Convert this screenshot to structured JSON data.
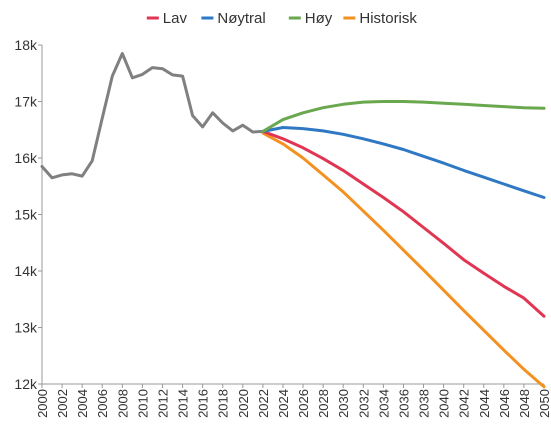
{
  "chart_data": {
    "type": "line",
    "legend_position": "top",
    "grid": false,
    "xlim": [
      2000,
      2050
    ],
    "ylim": [
      12000,
      18000
    ],
    "y_ticks": [
      {
        "value": 12000,
        "label": "12k"
      },
      {
        "value": 13000,
        "label": "13k"
      },
      {
        "value": 14000,
        "label": "14k"
      },
      {
        "value": 15000,
        "label": "15k"
      },
      {
        "value": 16000,
        "label": "16k"
      },
      {
        "value": 17000,
        "label": "17k"
      },
      {
        "value": 18000,
        "label": "18k"
      }
    ],
    "x_ticks": [
      "2000",
      "2002",
      "2004",
      "2006",
      "2008",
      "2010",
      "2012",
      "2014",
      "2016",
      "2018",
      "2020",
      "2022",
      "2024",
      "2026",
      "2028",
      "2030",
      "2032",
      "2034",
      "2036",
      "2038",
      "2040",
      "2042",
      "2044",
      "2046",
      "2048",
      "2050"
    ],
    "history": {
      "color": "#808080",
      "x": [
        2000,
        2001,
        2002,
        2003,
        2004,
        2005,
        2006,
        2007,
        2008,
        2009,
        2010,
        2011,
        2012,
        2013,
        2014,
        2015,
        2016,
        2017,
        2018,
        2019,
        2020,
        2021,
        2022
      ],
      "y": [
        15850,
        15650,
        15700,
        15720,
        15680,
        15950,
        16700,
        17450,
        17850,
        17420,
        17480,
        17600,
        17580,
        17470,
        17450,
        16750,
        16550,
        16800,
        16620,
        16480,
        16580,
        16460,
        16470
      ]
    },
    "series": [
      {
        "name": "Lav",
        "color": "#e03553",
        "x": [
          2022,
          2024,
          2026,
          2028,
          2030,
          2032,
          2034,
          2036,
          2038,
          2040,
          2042,
          2044,
          2046,
          2048,
          2050
        ],
        "y": [
          16470,
          16340,
          16180,
          15990,
          15780,
          15540,
          15300,
          15050,
          14770,
          14490,
          14200,
          13960,
          13730,
          13520,
          13200
        ]
      },
      {
        "name": "Nøytral",
        "color": "#2f78c4",
        "x": [
          2022,
          2024,
          2026,
          2028,
          2030,
          2032,
          2034,
          2036,
          2038,
          2040,
          2042,
          2044,
          2046,
          2048,
          2050
        ],
        "y": [
          16470,
          16540,
          16520,
          16480,
          16420,
          16340,
          16250,
          16150,
          16030,
          15910,
          15780,
          15660,
          15540,
          15420,
          15300
        ]
      },
      {
        "name": "Høy",
        "color": "#6aa84f",
        "x": [
          2022,
          2024,
          2026,
          2028,
          2030,
          2032,
          2034,
          2036,
          2038,
          2040,
          2042,
          2044,
          2046,
          2048,
          2050
        ],
        "y": [
          16470,
          16680,
          16800,
          16890,
          16950,
          16990,
          17000,
          17000,
          16990,
          16970,
          16950,
          16930,
          16910,
          16890,
          16880
        ]
      },
      {
        "name": "Historisk",
        "color": "#f39121",
        "x": [
          2022,
          2024,
          2026,
          2028,
          2030,
          2032,
          2034,
          2036,
          2038,
          2040,
          2042,
          2044,
          2046,
          2048,
          2050
        ],
        "y": [
          16440,
          16250,
          16000,
          15700,
          15400,
          15060,
          14720,
          14370,
          14020,
          13660,
          13300,
          12950,
          12600,
          12260,
          11950
        ]
      }
    ]
  }
}
